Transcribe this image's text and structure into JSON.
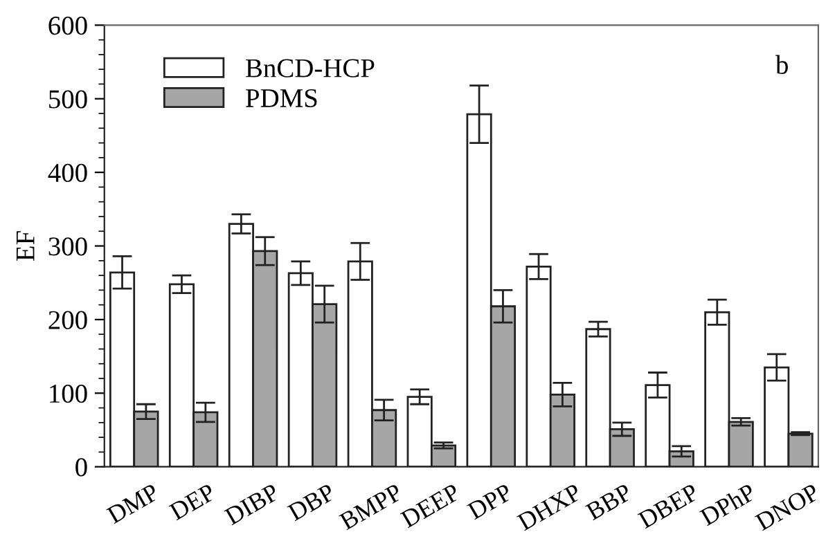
{
  "chart_data": {
    "type": "bar",
    "ylabel": "EF",
    "annotations": [
      "b"
    ],
    "categories": [
      "DMP",
      "DEP",
      "DIBP",
      "DBP",
      "BMPP",
      "DEEP",
      "DPP",
      "DHXP",
      "BBP",
      "DBEP",
      "DPhP",
      "DNOP"
    ],
    "series": [
      {
        "name": "BnCD-HCP",
        "color": "#ffffff",
        "values": [
          264,
          248,
          330,
          263,
          279,
          95,
          479,
          272,
          187,
          111,
          210,
          135
        ],
        "errors": [
          22,
          12,
          13,
          16,
          25,
          10,
          39,
          17,
          10,
          17,
          17,
          18
        ]
      },
      {
        "name": "PDMS",
        "color": "#a6a6a6",
        "values": [
          75,
          74,
          293,
          221,
          77,
          29,
          218,
          98,
          51,
          21,
          61,
          45
        ],
        "errors": [
          10,
          13,
          19,
          25,
          14,
          4,
          22,
          16,
          9,
          7,
          5,
          2
        ]
      }
    ],
    "ylim": [
      0,
      600
    ],
    "yticks": [
      0,
      100,
      200,
      300,
      400,
      500,
      600
    ],
    "legend": "top left",
    "grid": false
  }
}
